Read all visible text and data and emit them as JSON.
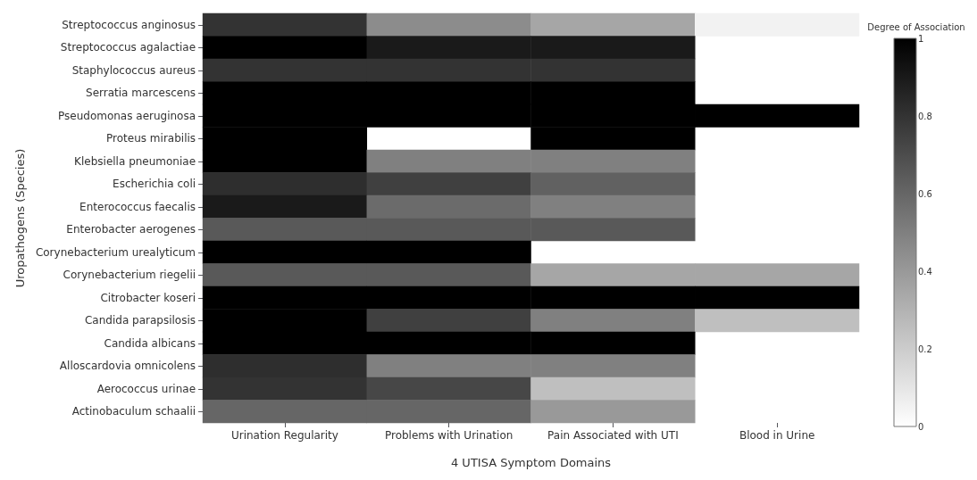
{
  "chart_data": {
    "type": "heatmap",
    "xlabel": "4 UTISA Symptom Domains",
    "ylabel": "Uropathogens (Species)",
    "clabel": "Degree of Association",
    "categories": [
      "Urination Regularity",
      "Problems with Urination",
      "Pain Associated with UTI",
      "Blood in Urine"
    ],
    "y_categories": [
      "Streptococcus anginosus",
      "Streptococcus agalactiae",
      "Staphylococcus aureus",
      "Serratia marcescens",
      "Pseudomonas aeruginosa",
      "Proteus mirabilis",
      "Klebsiella pneumoniae",
      "Escherichia coli",
      "Enterococcus faecalis",
      "Enterobacter aerogenes",
      "Corynebacterium urealyticum",
      "Corynebacterium riegelii",
      "Citrobacter koseri",
      "Candida parapsilosis",
      "Candida albicans",
      "Alloscardovia omnicolens",
      "Aerococcus urinae",
      "Actinobaculum schaalii"
    ],
    "cells": [
      [
        0.8,
        0.45,
        0.35,
        0.05
      ],
      [
        1,
        0.9,
        0.9,
        null
      ],
      [
        0.8,
        0.8,
        0.8,
        null
      ],
      [
        1,
        1,
        1,
        null
      ],
      [
        1,
        1,
        1,
        1
      ],
      [
        1,
        null,
        1,
        null
      ],
      [
        1,
        0.5,
        0.5,
        null
      ],
      [
        0.82,
        0.75,
        0.62,
        null
      ],
      [
        0.9,
        0.58,
        0.5,
        null
      ],
      [
        0.65,
        0.65,
        0.65,
        null
      ],
      [
        1,
        1,
        null,
        null
      ],
      [
        0.65,
        0.65,
        0.35,
        0.35
      ],
      [
        1,
        1,
        1,
        1
      ],
      [
        1,
        0.75,
        0.5,
        0.25
      ],
      [
        1,
        1,
        1,
        null
      ],
      [
        0.82,
        0.5,
        0.5,
        null
      ],
      [
        0.8,
        0.72,
        0.25,
        null
      ],
      [
        0.6,
        0.6,
        0.4,
        null
      ]
    ],
    "clim": [
      0,
      1
    ],
    "cticks": [
      0,
      0.2,
      0.4,
      0.6,
      0.8,
      1
    ]
  }
}
